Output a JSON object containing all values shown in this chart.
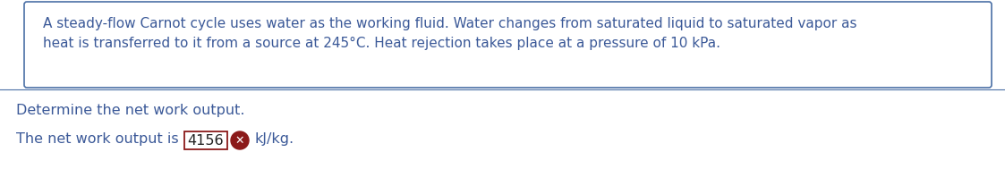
{
  "problem_text_line1": "A steady-flow Carnot cycle uses water as the working fluid. Water changes from saturated liquid to saturated vapor as",
  "problem_text_line2": "heat is transferred to it from a source at 245°C. Heat rejection takes place at a pressure of 10 kPa.",
  "question_text": "Determine the net work output.",
  "answer_prefix": "The net work output is",
  "answer_value": "4156",
  "answer_suffix": "kJ/kg.",
  "text_color": "#3b5998",
  "dark_red": "#8b1a1a",
  "bg_color": "#ffffff",
  "border_color": "#4a6fa5",
  "font_size_problem": 11.0,
  "font_size_question": 11.5,
  "font_size_answer": 11.5
}
